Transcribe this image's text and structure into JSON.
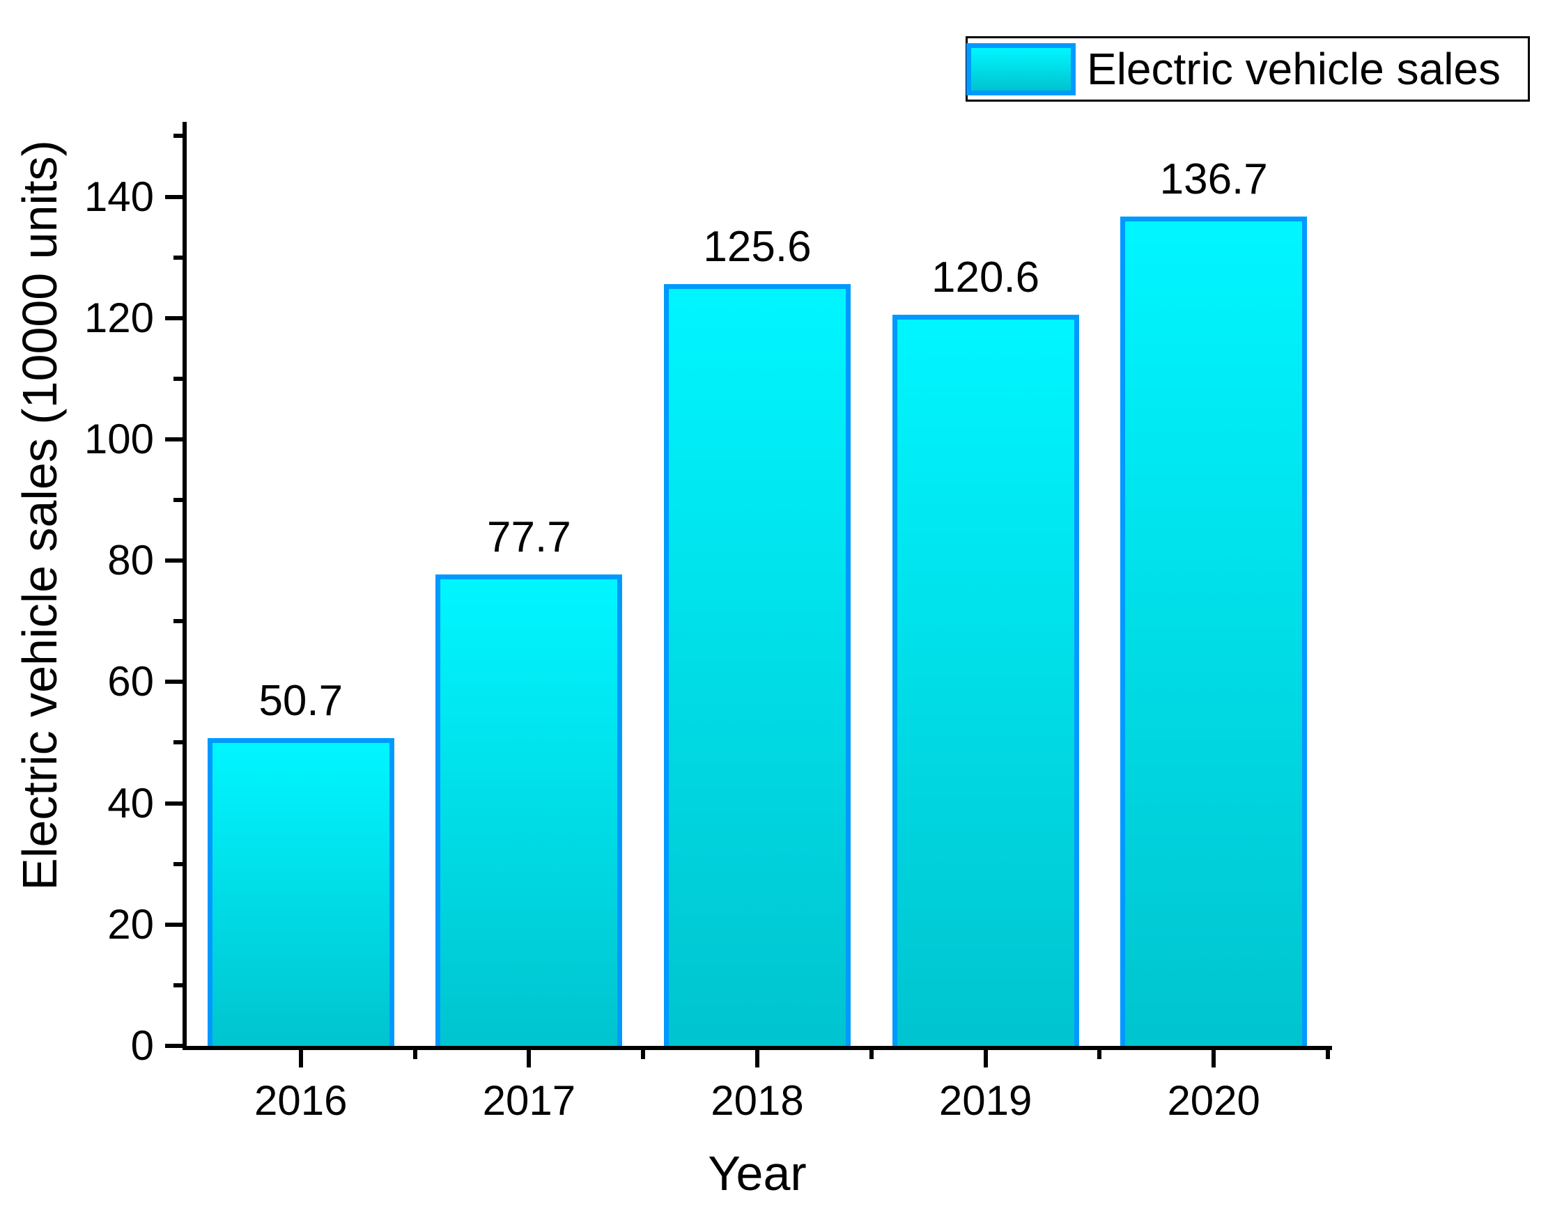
{
  "chart_data": {
    "type": "bar",
    "title": "",
    "categories": [
      "2016",
      "2017",
      "2018",
      "2019",
      "2020"
    ],
    "values": [
      50.7,
      77.7,
      125.6,
      120.6,
      136.7
    ],
    "data_labels": [
      "50.7",
      "77.7",
      "125.6",
      "120.6",
      "136.7"
    ],
    "series_name": "Electric vehicle sales",
    "xlabel": "Year",
    "ylabel": "Electric vehicle sales (10000 units)",
    "ylim": [
      0,
      152
    ],
    "y_major_ticks": [
      0,
      20,
      40,
      60,
      80,
      100,
      120,
      140
    ],
    "y_major_tick_labels": [
      "0",
      "20",
      "40",
      "60",
      "80",
      "100",
      "120",
      "140"
    ],
    "y_minor_ticks": [
      10,
      30,
      50,
      70,
      90,
      110,
      130,
      150
    ],
    "grid": false,
    "legend": {
      "label": "Electric vehicle sales",
      "position": "top-right"
    },
    "colors": {
      "bar_fill_top": "#00F6FF",
      "bar_fill_bottom": "#00C4CF",
      "bar_border": "#0099FF",
      "axis": "#000000",
      "text": "#000000",
      "legend_border": "#000000",
      "background": "#FFFFFF"
    }
  }
}
